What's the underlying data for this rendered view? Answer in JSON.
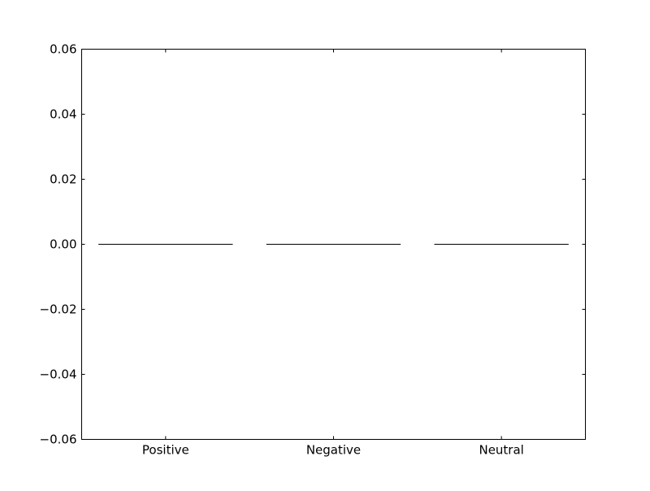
{
  "chart_data": {
    "type": "bar",
    "title": "",
    "xlabel": "",
    "ylabel": "",
    "categories": [
      "Positive",
      "Negative",
      "Neutral"
    ],
    "values": [
      0,
      0,
      0
    ],
    "ylim": [
      -0.06,
      0.06
    ],
    "yticks": [
      -0.06,
      -0.04,
      -0.02,
      0.0,
      0.02,
      0.04,
      0.06
    ],
    "ytick_labels": [
      "−0.06",
      "−0.04",
      "−0.02",
      "0.00",
      "0.02",
      "0.04",
      "0.06"
    ],
    "grid": false,
    "legend": "none",
    "colors": {
      "bar_edge": "#000000",
      "axes": "#000000",
      "background": "#ffffff"
    }
  }
}
